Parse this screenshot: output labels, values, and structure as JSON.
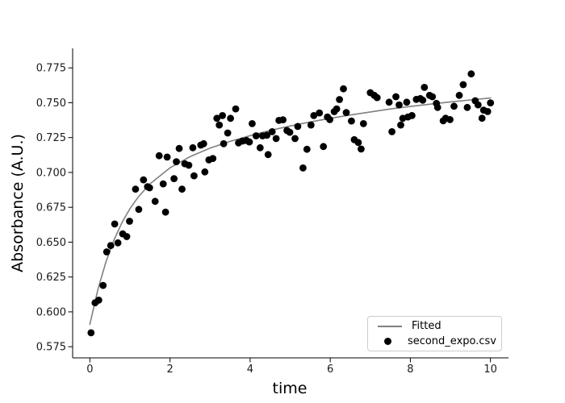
{
  "chart_data": {
    "type": "scatter",
    "title": "",
    "xlabel": "time",
    "ylabel": "Absorbance (A.U.)",
    "xlim": [
      -0.43,
      10.45
    ],
    "ylim": [
      0.567,
      0.789
    ],
    "grid": false,
    "line_color": "#808080",
    "marker_color": "#000000",
    "xticks": [
      {
        "v": 0,
        "label": "0"
      },
      {
        "v": 2,
        "label": "2"
      },
      {
        "v": 4,
        "label": "4"
      },
      {
        "v": 6,
        "label": "6"
      },
      {
        "v": 8,
        "label": "8"
      },
      {
        "v": 10,
        "label": "10"
      }
    ],
    "yticks": [
      {
        "v": 0.575,
        "label": "0.575"
      },
      {
        "v": 0.6,
        "label": "0.600"
      },
      {
        "v": 0.625,
        "label": "0.625"
      },
      {
        "v": 0.65,
        "label": "0.650"
      },
      {
        "v": 0.675,
        "label": "0.675"
      },
      {
        "v": 0.7,
        "label": "0.700"
      },
      {
        "v": 0.725,
        "label": "0.725"
      },
      {
        "v": 0.75,
        "label": "0.750"
      },
      {
        "v": 0.775,
        "label": "0.775"
      }
    ],
    "legend": {
      "position": "lower right",
      "entries": [
        {
          "label": "Fitted",
          "type": "line",
          "color": "#808080"
        },
        {
          "label": "second_expo.csv",
          "type": "marker",
          "color": "#000000"
        }
      ]
    },
    "series": [
      {
        "name": "Fitted",
        "type": "line",
        "color": "#808080",
        "points": [
          [
            0.0,
            0.591
          ],
          [
            0.2,
            0.616
          ],
          [
            0.4,
            0.6358
          ],
          [
            0.6,
            0.6514
          ],
          [
            0.8,
            0.6639
          ],
          [
            1.0,
            0.674
          ],
          [
            1.2,
            0.6821
          ],
          [
            1.5,
            0.6918
          ],
          [
            2.0,
            0.7033
          ],
          [
            2.5,
            0.7113
          ],
          [
            3.0,
            0.7174
          ],
          [
            3.5,
            0.7223
          ],
          [
            4.0,
            0.7264
          ],
          [
            4.5,
            0.7301
          ],
          [
            5.0,
            0.7333
          ],
          [
            5.5,
            0.7362
          ],
          [
            6.0,
            0.7388
          ],
          [
            6.5,
            0.7412
          ],
          [
            7.0,
            0.7434
          ],
          [
            7.5,
            0.7455
          ],
          [
            8.0,
            0.7473
          ],
          [
            8.5,
            0.749
          ],
          [
            9.0,
            0.7506
          ],
          [
            9.5,
            0.752
          ],
          [
            10.0,
            0.7534
          ]
        ]
      },
      {
        "name": "second_expo.csv",
        "type": "scatter",
        "color": "#000000",
        "marker_radius": 4.4,
        "points": [
          [
            0.03,
            0.585
          ],
          [
            0.13,
            0.6065
          ],
          [
            0.22,
            0.6084
          ],
          [
            0.33,
            0.619
          ],
          [
            0.42,
            0.643
          ],
          [
            0.52,
            0.6476
          ],
          [
            0.62,
            0.663
          ],
          [
            0.7,
            0.6495
          ],
          [
            0.82,
            0.656
          ],
          [
            0.92,
            0.654
          ],
          [
            0.99,
            0.665
          ],
          [
            1.14,
            0.688
          ],
          [
            1.22,
            0.6735
          ],
          [
            1.34,
            0.6947
          ],
          [
            1.44,
            0.6898
          ],
          [
            1.49,
            0.689
          ],
          [
            1.63,
            0.6793
          ],
          [
            1.73,
            0.712
          ],
          [
            1.83,
            0.6918
          ],
          [
            1.89,
            0.6715
          ],
          [
            1.93,
            0.711
          ],
          [
            2.1,
            0.6956
          ],
          [
            2.16,
            0.7077
          ],
          [
            2.23,
            0.7172
          ],
          [
            2.3,
            0.688
          ],
          [
            2.37,
            0.7062
          ],
          [
            2.47,
            0.7052
          ],
          [
            2.57,
            0.7177
          ],
          [
            2.6,
            0.6976
          ],
          [
            2.77,
            0.7196
          ],
          [
            2.84,
            0.7206
          ],
          [
            2.87,
            0.7004
          ],
          [
            2.97,
            0.709
          ],
          [
            3.07,
            0.71
          ],
          [
            3.17,
            0.7388
          ],
          [
            3.23,
            0.734
          ],
          [
            3.31,
            0.7408
          ],
          [
            3.34,
            0.7206
          ],
          [
            3.44,
            0.7283
          ],
          [
            3.51,
            0.7388
          ],
          [
            3.64,
            0.7456
          ],
          [
            3.71,
            0.7212
          ],
          [
            3.81,
            0.7225
          ],
          [
            3.91,
            0.7229
          ],
          [
            3.98,
            0.7219
          ],
          [
            4.05,
            0.735
          ],
          [
            4.15,
            0.7263
          ],
          [
            4.25,
            0.7177
          ],
          [
            4.31,
            0.7263
          ],
          [
            4.42,
            0.7267
          ],
          [
            4.45,
            0.7128
          ],
          [
            4.55,
            0.7292
          ],
          [
            4.65,
            0.7243
          ],
          [
            4.72,
            0.7373
          ],
          [
            4.82,
            0.7378
          ],
          [
            4.92,
            0.7301
          ],
          [
            4.99,
            0.7288
          ],
          [
            5.12,
            0.7243
          ],
          [
            5.19,
            0.733
          ],
          [
            5.32,
            0.7032
          ],
          [
            5.42,
            0.7166
          ],
          [
            5.52,
            0.734
          ],
          [
            5.59,
            0.7408
          ],
          [
            5.73,
            0.7427
          ],
          [
            5.83,
            0.7186
          ],
          [
            5.93,
            0.7398
          ],
          [
            5.99,
            0.7379
          ],
          [
            6.1,
            0.7436
          ],
          [
            6.16,
            0.7456
          ],
          [
            6.23,
            0.7523
          ],
          [
            6.33,
            0.76
          ],
          [
            6.4,
            0.743
          ],
          [
            6.53,
            0.7369
          ],
          [
            6.6,
            0.7235
          ],
          [
            6.7,
            0.7215
          ],
          [
            6.77,
            0.7168
          ],
          [
            6.83,
            0.735
          ],
          [
            7.0,
            0.7572
          ],
          [
            7.1,
            0.7553
          ],
          [
            7.17,
            0.7537
          ],
          [
            7.47,
            0.7504
          ],
          [
            7.54,
            0.7292
          ],
          [
            7.64,
            0.7543
          ],
          [
            7.72,
            0.7485
          ],
          [
            7.76,
            0.734
          ],
          [
            7.81,
            0.7388
          ],
          [
            7.91,
            0.7504
          ],
          [
            7.94,
            0.7398
          ],
          [
            8.04,
            0.7408
          ],
          [
            8.15,
            0.7524
          ],
          [
            8.25,
            0.753
          ],
          [
            8.31,
            0.7518
          ],
          [
            8.35,
            0.761
          ],
          [
            8.48,
            0.7553
          ],
          [
            8.55,
            0.7543
          ],
          [
            8.65,
            0.7495
          ],
          [
            8.68,
            0.7466
          ],
          [
            8.82,
            0.737
          ],
          [
            8.88,
            0.7389
          ],
          [
            8.99,
            0.7379
          ],
          [
            9.09,
            0.7475
          ],
          [
            9.22,
            0.7553
          ],
          [
            9.32,
            0.763
          ],
          [
            9.42,
            0.7466
          ],
          [
            9.52,
            0.7707
          ],
          [
            9.62,
            0.7514
          ],
          [
            9.69,
            0.7485
          ],
          [
            9.79,
            0.7389
          ],
          [
            9.83,
            0.7447
          ],
          [
            9.93,
            0.7437
          ],
          [
            10.0,
            0.7499
          ]
        ]
      }
    ]
  }
}
